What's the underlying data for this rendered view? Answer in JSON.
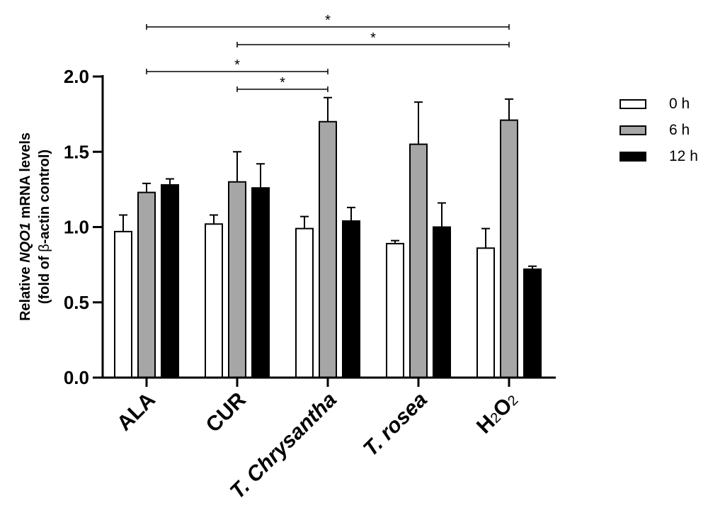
{
  "chart_data": {
    "type": "bar",
    "categories": [
      "ALA",
      "CUR",
      "T. Chrysantha",
      "T. rosea",
      "H2O2"
    ],
    "category_labels": [
      {
        "parts": [
          {
            "t": "ALA"
          }
        ]
      },
      {
        "parts": [
          {
            "t": "CUR"
          }
        ]
      },
      {
        "parts": [
          {
            "t": "T. Chrysantha"
          }
        ]
      },
      {
        "parts": [
          {
            "t": "T. rosea"
          }
        ]
      },
      {
        "parts": [
          {
            "t": "H"
          },
          {
            "t": "2",
            "sub": true
          },
          {
            "t": "O"
          },
          {
            "t": "2",
            "sub": true
          }
        ]
      }
    ],
    "series": [
      {
        "name": "0 h",
        "color": "#ffffff",
        "values": [
          0.97,
          1.02,
          0.99,
          0.89,
          0.86
        ],
        "errors": [
          0.11,
          0.06,
          0.08,
          0.02,
          0.13
        ]
      },
      {
        "name": "6 h",
        "color": "#a6a6a6",
        "values": [
          1.23,
          1.3,
          1.7,
          1.55,
          1.71
        ],
        "errors": [
          0.06,
          0.2,
          0.16,
          0.28,
          0.14
        ]
      },
      {
        "name": "12 h",
        "color": "#000000",
        "values": [
          1.28,
          1.26,
          1.04,
          1.0,
          0.72
        ],
        "errors": [
          0.04,
          0.16,
          0.09,
          0.16,
          0.02
        ]
      }
    ],
    "ylabel": {
      "line1": [
        {
          "t": "Relative "
        },
        {
          "t": "NQO1",
          "italic": true
        },
        {
          "t": " mRNA levels"
        }
      ],
      "line2": [
        {
          "t": "(fold of "
        },
        {
          "t": "β",
          "bold": false
        },
        {
          "t": "-actin control)"
        }
      ]
    },
    "ylim": [
      0,
      2.0
    ],
    "yticks": [
      "0.0",
      "0.5",
      "1.0",
      "1.5",
      "2.0"
    ],
    "significance": [
      {
        "from": 0,
        "to": 4,
        "label": "*"
      },
      {
        "from": 1,
        "to": 4,
        "label": "*"
      },
      {
        "from": 0,
        "to": 2,
        "label": "*"
      },
      {
        "from": 1,
        "to": 2,
        "label": "*"
      }
    ],
    "legend_position": "top-right",
    "grid": false
  }
}
